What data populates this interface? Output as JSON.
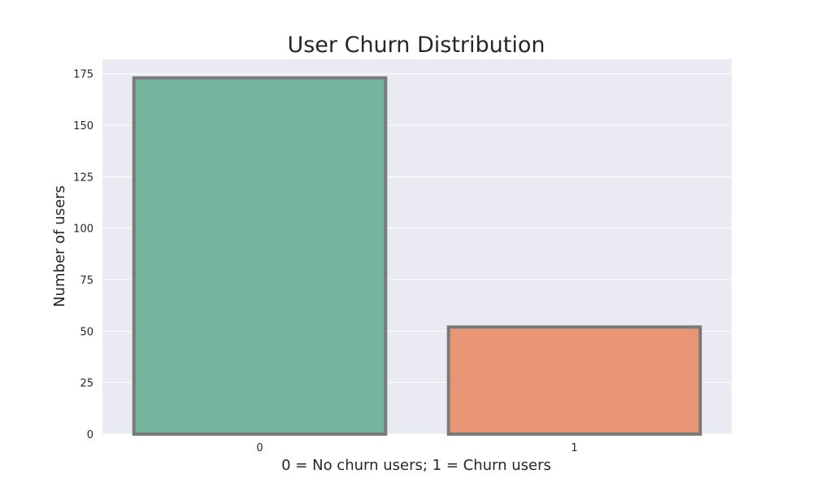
{
  "chart_data": {
    "type": "bar",
    "title": "User Churn Distribution",
    "xlabel": "0 = No churn users; 1 = Churn users",
    "ylabel": "Number of users",
    "categories": [
      "0",
      "1"
    ],
    "values": [
      173,
      52
    ],
    "ylim": [
      0,
      182
    ],
    "yticks": [
      0,
      25,
      50,
      75,
      100,
      125,
      150,
      175
    ],
    "grid": true,
    "style": {
      "plot_background": "#eaeaf2",
      "grid_color": "#ffffff",
      "bar_colors": [
        "#74b5a0",
        "#e89674"
      ],
      "bar_edge_color": "#7a7a7a",
      "text_color": "#262626"
    }
  }
}
